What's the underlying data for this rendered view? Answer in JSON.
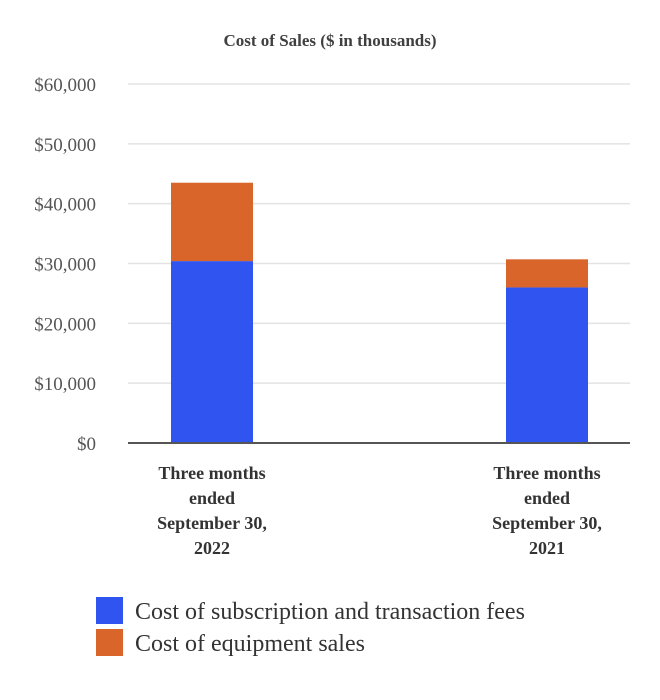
{
  "chart_data": {
    "type": "bar",
    "stacked": true,
    "title": "Cost of Sales ($ in thousands)",
    "categories": [
      [
        "Three months",
        "ended",
        "September 30,",
        "2022"
      ],
      [
        "Three months",
        "ended",
        "September 30,",
        "2021"
      ]
    ],
    "series": [
      {
        "name": "Cost of subscription and transaction fees",
        "color": "#2f54f0",
        "values": [
          30400,
          26000
        ]
      },
      {
        "name": "Cost of equipment sales",
        "color": "#d9652b",
        "values": [
          13100,
          4700
        ]
      }
    ],
    "ylim": [
      0,
      60000
    ],
    "yticks": [
      0,
      10000,
      20000,
      30000,
      40000,
      50000,
      60000
    ],
    "ytick_labels": [
      "$0",
      "$10,000",
      "$20,000",
      "$30,000",
      "$40,000",
      "$50,000",
      "$60,000"
    ],
    "grid": true,
    "legend_position": "bottom-center",
    "xlabel": "",
    "ylabel": ""
  }
}
